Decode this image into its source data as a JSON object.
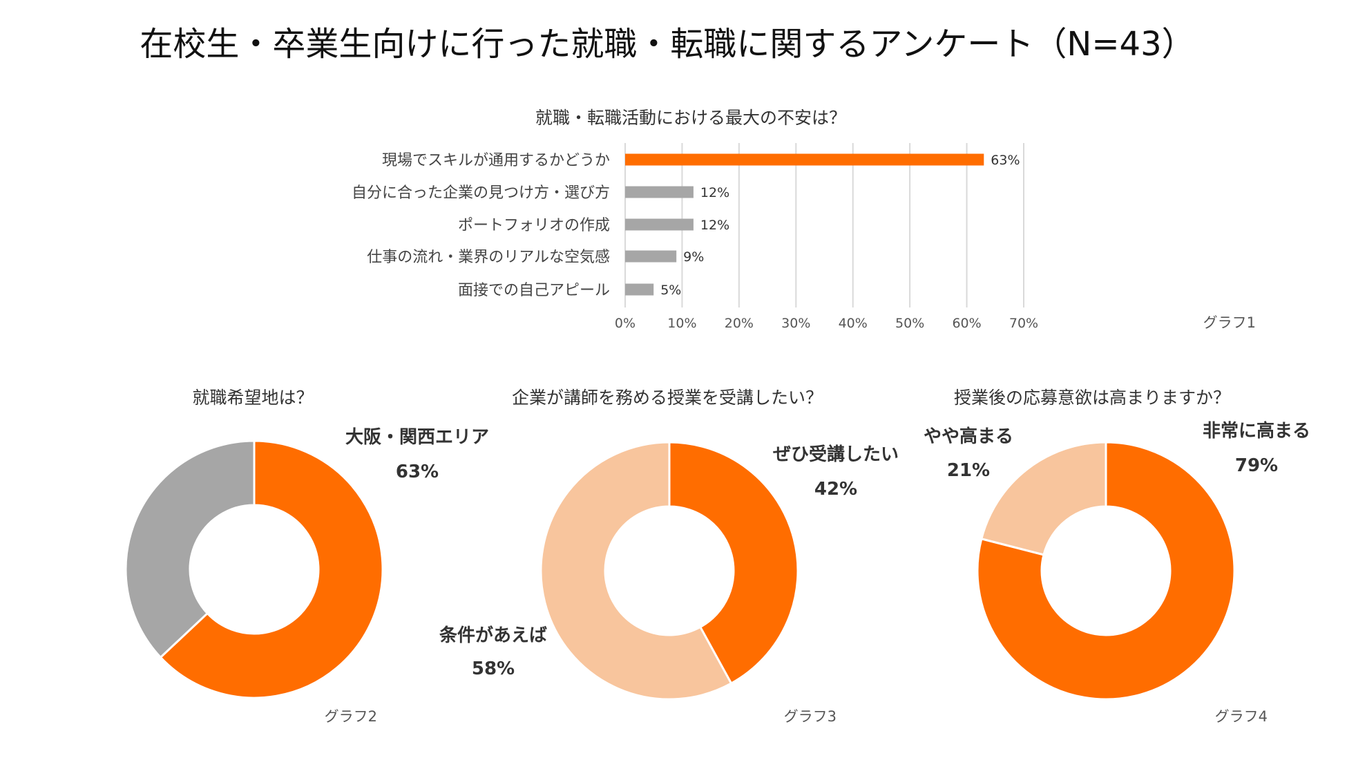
{
  "title": "在校生・卒業生向けに行った就職・転職に関するアンケート（N=43）",
  "colors": {
    "orange": "#FF6D00",
    "gray": "#A6A6A6",
    "peach": "#F8C59D",
    "grid": "#D9D9D9"
  },
  "chart_data": [
    {
      "type": "bar",
      "orientation": "horizontal",
      "title": "就職・転職活動における最大の不安は？",
      "caption": "グラフ1",
      "categories": [
        "現場でスキルが通用するかどうか",
        "自分に合った企業の見つけ方・選び方",
        "ポートフォリオの作成",
        "仕事の流れ・業界のリアルな空気感",
        "面接での自己アピール"
      ],
      "values": [
        63,
        12,
        12,
        9,
        5
      ],
      "data_labels": [
        "63%",
        "12%",
        "12%",
        "9%",
        "5%"
      ],
      "bar_colors": [
        "#FF6D00",
        "#A6A6A6",
        "#A6A6A6",
        "#A6A6A6",
        "#A6A6A6"
      ],
      "xlim": [
        0,
        70
      ],
      "x_ticks": [
        "0%",
        "10%",
        "20%",
        "30%",
        "40%",
        "50%",
        "60%",
        "70%"
      ],
      "grid": true
    },
    {
      "type": "pie",
      "donut": true,
      "title": "就職希望地は？",
      "caption": "グラフ2",
      "slices": [
        {
          "label": "大阪・関西エリア",
          "value": 63,
          "value_label": "63%",
          "color": "#FF6D00"
        },
        {
          "label": "",
          "value": 37,
          "value_label": "",
          "color": "#A6A6A6"
        }
      ]
    },
    {
      "type": "pie",
      "donut": true,
      "title": "企業が講師を務める授業を受講したい？",
      "caption": "グラフ3",
      "slices": [
        {
          "label": "ぜひ受講したい",
          "value": 42,
          "value_label": "42%",
          "color": "#FF6D00"
        },
        {
          "label": "条件があえば",
          "value": 58,
          "value_label": "58%",
          "color": "#F8C59D"
        }
      ]
    },
    {
      "type": "pie",
      "donut": true,
      "title": "授業後の応募意欲は高まりますか？",
      "caption": "グラフ4",
      "slices": [
        {
          "label": "非常に高まる",
          "value": 79,
          "value_label": "79%",
          "color": "#FF6D00"
        },
        {
          "label": "やや高まる",
          "value": 21,
          "value_label": "21%",
          "color": "#F8C59D"
        }
      ]
    }
  ]
}
